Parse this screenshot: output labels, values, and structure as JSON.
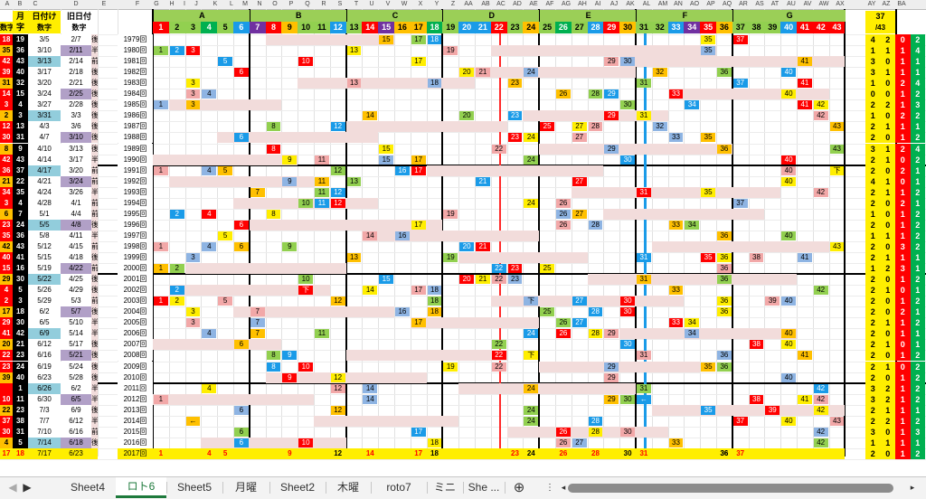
{
  "column_letters": [
    "A",
    "B",
    "C",
    "D",
    "E",
    "F",
    "G",
    "H",
    "I",
    "J",
    "K",
    "L",
    "M",
    "N",
    "O",
    "P",
    "Q",
    "R",
    "S",
    "T",
    "U",
    "V",
    "W",
    "X",
    "Y",
    "Z",
    "AA",
    "AB",
    "AC",
    "AD",
    "AE",
    "AF",
    "AG",
    "AH",
    "AI",
    "AJ",
    "AK",
    "AL",
    "AM",
    "AN",
    "AO",
    "AP",
    "AQ",
    "AR",
    "AS",
    "AT",
    "AU",
    "AV",
    "AW",
    "AX",
    "AY",
    "AZ",
    "BA"
  ],
  "header": {
    "month": "月",
    "digit": "字",
    "number": "数字",
    "date_label": "日付け",
    "old_date_label": "旧日付",
    "groups": [
      "A",
      "B",
      "C",
      "D",
      "E",
      "F",
      "G"
    ],
    "side_top": "37",
    "side_fraction": "/43"
  },
  "numbers": [
    "1",
    "2",
    "3",
    "4",
    "5",
    "6",
    "7",
    "8",
    "9",
    "10",
    "11",
    "12",
    "13",
    "14",
    "15",
    "16",
    "17",
    "18",
    "19",
    "20",
    "21",
    "22",
    "23",
    "24",
    "25",
    "26",
    "27",
    "28",
    "29",
    "30",
    "31",
    "32",
    "33",
    "34",
    "35",
    "36",
    "37",
    "38",
    "39",
    "40",
    "41",
    "42",
    "43"
  ],
  "rows": [
    [
      "18",
      "19",
      "3/5",
      "2/7",
      "後",
      "1979回"
    ],
    [
      "35",
      "36",
      "3/10",
      "2/11",
      "半",
      "1980回"
    ],
    [
      "42",
      "43",
      "3/13",
      "2/14",
      "前",
      "1981回"
    ],
    [
      "39",
      "40",
      "3/17",
      "2/18",
      "後",
      "1982回"
    ],
    [
      "31",
      "32",
      "3/20",
      "2/21",
      "後",
      "1983回"
    ],
    [
      "14",
      "15",
      "3/24",
      "2/25",
      "後",
      "1984回"
    ],
    [
      "3",
      "4",
      "3/27",
      "2/28",
      "後",
      "1985回"
    ],
    [
      "2",
      "3",
      "3/31",
      "3/3",
      "後",
      "1986回"
    ],
    [
      "12",
      "13",
      "4/3",
      "3/6",
      "後",
      "1987回"
    ],
    [
      "30",
      "31",
      "4/7",
      "3/10",
      "後",
      "1988回"
    ],
    [
      "8",
      "9",
      "4/10",
      "3/13",
      "後",
      "1989回"
    ],
    [
      "42",
      "43",
      "4/14",
      "3/17",
      "半",
      "1990回"
    ],
    [
      "36",
      "37",
      "4/17",
      "3/20",
      "前",
      "1991回"
    ],
    [
      "21",
      "22",
      "4/21",
      "3/24",
      "前",
      "1992回"
    ],
    [
      "34",
      "35",
      "4/24",
      "3/26",
      "半",
      "1993回"
    ],
    [
      "3",
      "4",
      "4/28",
      "4/1",
      "前",
      "1994回"
    ],
    [
      "6",
      "7",
      "5/1",
      "4/4",
      "前",
      "1995回"
    ],
    [
      "23",
      "24",
      "5/5",
      "4/8",
      "後",
      "1996回"
    ],
    [
      "35",
      "36",
      "5/8",
      "4/11",
      "半",
      "1997回"
    ],
    [
      "42",
      "43",
      "5/12",
      "4/15",
      "前",
      "1998回"
    ],
    [
      "40",
      "41",
      "5/15",
      "4/18",
      "後",
      "1999回"
    ],
    [
      "15",
      "16",
      "5/19",
      "4/22",
      "前",
      "2000回"
    ],
    [
      "29",
      "30",
      "5/22",
      "4/25",
      "後",
      "2001回"
    ],
    [
      "4",
      "5",
      "5/26",
      "4/29",
      "後",
      "2002回"
    ],
    [
      "2",
      "3",
      "5/29",
      "5/3",
      "前",
      "2003回"
    ],
    [
      "17",
      "18",
      "6/2",
      "5/7",
      "後",
      "2004回"
    ],
    [
      "29",
      "30",
      "6/5",
      "5/10",
      "半",
      "2005回"
    ],
    [
      "41",
      "42",
      "6/9",
      "5/14",
      "半",
      "2006回"
    ],
    [
      "20",
      "21",
      "6/12",
      "5/17",
      "後",
      "2007回"
    ],
    [
      "22",
      "23",
      "6/16",
      "5/21",
      "後",
      "2008回"
    ],
    [
      "23",
      "24",
      "6/19",
      "5/24",
      "後",
      "2009回"
    ],
    [
      "39",
      "40",
      "6/23",
      "5/28",
      "後",
      "2010回"
    ],
    [
      "",
      "1",
      "6/26",
      "6/2",
      "半",
      "2011回"
    ],
    [
      "10",
      "11",
      "6/30",
      "6/5",
      "半",
      "2012回"
    ],
    [
      "22",
      "23",
      "7/3",
      "6/9",
      "後",
      "2013回"
    ],
    [
      "37",
      "38",
      "7/7",
      "6/12",
      "半",
      "2014回"
    ],
    [
      "30",
      "31",
      "7/10",
      "6/16",
      "前",
      "2015回"
    ],
    [
      "4",
      "5",
      "7/14",
      "6/18",
      "後",
      "2016回"
    ],
    [
      "17",
      "18",
      "7/17",
      "6/23",
      "",
      "2017回"
    ]
  ],
  "side_counts": [
    [
      "4",
      "2",
      "0",
      "2"
    ],
    [
      "1",
      "1",
      "1",
      "4"
    ],
    [
      "3",
      "0",
      "1",
      "1"
    ],
    [
      "3",
      "1",
      "1",
      "1"
    ],
    [
      "1",
      "0",
      "2",
      "4"
    ],
    [
      "0",
      "0",
      "1",
      "2"
    ],
    [
      "2",
      "2",
      "1",
      "3"
    ],
    [
      "1",
      "0",
      "2",
      "2"
    ],
    [
      "2",
      "1",
      "1",
      "1"
    ],
    [
      "2",
      "0",
      "1",
      "2"
    ],
    [
      "3",
      "1",
      "2",
      "4"
    ],
    [
      "2",
      "1",
      "0",
      "2"
    ],
    [
      "2",
      "0",
      "2",
      "1"
    ],
    [
      "4",
      "1",
      "0",
      "1"
    ],
    [
      "2",
      "1",
      "1",
      "2"
    ],
    [
      "2",
      "0",
      "2",
      "1"
    ],
    [
      "1",
      "0",
      "1",
      "2"
    ],
    [
      "2",
      "0",
      "1",
      "2"
    ],
    [
      "1",
      "1",
      "1",
      "2"
    ],
    [
      "2",
      "0",
      "3",
      "2"
    ],
    [
      "2",
      "1",
      "1",
      "1"
    ],
    [
      "1",
      "2",
      "3",
      "1"
    ],
    [
      "2",
      "0",
      "1",
      "2"
    ],
    [
      "2",
      "1",
      "0",
      "1"
    ],
    [
      "2",
      "0",
      "1",
      "2"
    ],
    [
      "2",
      "0",
      "2",
      "1"
    ],
    [
      "2",
      "1",
      "1",
      "2"
    ],
    [
      "2",
      "0",
      "1",
      "1"
    ],
    [
      "2",
      "1",
      "0",
      "1"
    ],
    [
      "2",
      "0",
      "1",
      "2"
    ],
    [
      "2",
      "1",
      "0",
      "2"
    ],
    [
      "2",
      "0",
      "1",
      "2"
    ],
    [
      "3",
      "2",
      "1",
      "2"
    ],
    [
      "3",
      "2",
      "1",
      "2"
    ],
    [
      "2",
      "1",
      "1",
      "1"
    ],
    [
      "2",
      "2",
      "1",
      "2"
    ],
    [
      "3",
      "0",
      "1",
      "3"
    ],
    [
      "1",
      "1",
      "1",
      "1"
    ],
    [
      "2",
      "0",
      "1",
      "2"
    ]
  ],
  "marks": {
    "r0": [
      "15",
      "17",
      "18",
      "37",
      "35"
    ],
    "r1": [
      "1",
      "2",
      "3",
      "13",
      "19",
      "35"
    ],
    "r2": [
      "5",
      "10",
      "17",
      "29",
      "30",
      "41"
    ],
    "r3": [
      "6",
      "20",
      "21",
      "24",
      "32",
      "36",
      "40"
    ],
    "r4": [
      "3",
      "13",
      "18",
      "23",
      "31",
      "37",
      "41"
    ],
    "r5": [
      "3",
      "4",
      "26",
      "28",
      "29",
      "33",
      "40"
    ],
    "r6": [
      "1",
      "3",
      "30",
      "34",
      "41",
      "42"
    ],
    "r7": [
      "14",
      "20",
      "23",
      "29",
      "31",
      "42"
    ],
    "r8": [
      "8",
      "12",
      "25",
      "27",
      "28",
      "32",
      "43"
    ],
    "r9": [
      "6",
      "23",
      "24",
      "27",
      "33",
      "35"
    ],
    "r10": [
      "8",
      "15",
      "22",
      "29",
      "36",
      "43"
    ],
    "r11": [
      "9",
      "11",
      "15",
      "17",
      "24",
      "30",
      "40"
    ],
    "r12": [
      "1",
      "4",
      "5",
      "12",
      "16",
      "17",
      "下",
      "40"
    ],
    "r13": [
      "9",
      "11",
      "13",
      "21",
      "27",
      "40"
    ],
    "r14": [
      "7",
      "11",
      "12",
      "31",
      "35",
      "42"
    ],
    "r15": [
      "10",
      "11",
      "12",
      "24",
      "26",
      "37"
    ],
    "r16": [
      "2",
      "4",
      "8",
      "19",
      "26",
      "27"
    ],
    "r17": [
      "6",
      "17",
      "26",
      "28",
      "33",
      "34"
    ],
    "r18": [
      "5",
      "14",
      "16",
      "36",
      "40"
    ],
    "r19": [
      "1",
      "4",
      "6",
      "9",
      "20",
      "21",
      "43"
    ],
    "r20": [
      "3",
      "13",
      "19",
      "31",
      "35",
      "36",
      "38",
      "41"
    ],
    "r21": [
      "1",
      "2",
      "22",
      "23",
      "25",
      "36"
    ],
    "r22": [
      "10",
      "15",
      "20",
      "21",
      "22",
      "23",
      "31",
      "36"
    ],
    "r23": [
      "2",
      "下",
      "14",
      "17",
      "18",
      "33",
      "42"
    ],
    "r24": [
      "1",
      "2",
      "5",
      "下",
      "12",
      "18",
      "27",
      "30",
      "36",
      "39",
      "40"
    ],
    "r25": [
      "3",
      "7",
      "16",
      "18",
      "25",
      "28",
      "30",
      "36"
    ],
    "r26": [
      "3",
      "7",
      "17",
      "26",
      "27",
      "33",
      "34"
    ],
    "r27": [
      "4",
      "7",
      "11",
      "24",
      "26",
      "28",
      "29",
      "34",
      "40"
    ],
    "r28": [
      "6",
      "22",
      "30",
      "38",
      "40"
    ],
    "r29": [
      "8",
      "9",
      "22",
      "下",
      "31",
      "36",
      "41"
    ],
    "r30": [
      "8",
      "10",
      "19",
      "22",
      "29",
      "35",
      "36"
    ],
    "r31": [
      "9",
      "12",
      "29",
      "40"
    ],
    "r32": [
      "4",
      "12",
      "14",
      "24",
      "31",
      "42"
    ],
    "r33": [
      "1",
      "14",
      "29",
      "30",
      "←",
      "38",
      "41",
      "42"
    ],
    "r34": [
      "6",
      "12",
      "24",
      "35",
      "39",
      "42"
    ],
    "r35": [
      "←",
      "24",
      "28",
      "37",
      "40",
      "43"
    ],
    "r36": [
      "6",
      "17",
      "26",
      "28",
      "30",
      "42"
    ],
    "r37": [
      "6",
      "10",
      "18",
      "26",
      "27",
      "33",
      "42"
    ],
    "r38": [
      "1",
      "4",
      "5",
      "9",
      "12",
      "14",
      "17",
      "18",
      "23",
      "24",
      "26",
      "28",
      "30",
      "31",
      "36",
      "37",
      "36"
    ]
  },
  "tabs": [
    "Sheet4",
    "ロト6",
    "Sheet5",
    "月曜",
    "Sheet2",
    "木曜",
    "roto7",
    "ミニ",
    "She ..."
  ],
  "active_tab": "ロト6",
  "icons": {
    "prev": "triangle-left-icon",
    "next": "triangle-right-icon",
    "add": "plus-circle-icon",
    "more": "ellipsis-icon"
  },
  "colors": {
    "number_header_green": "#9bcf57",
    "number_header_red": "#ff0000",
    "yellow": "#ffee00",
    "orange": "#ffc000",
    "pink": "#f2dcdb",
    "blue": "#1a9be8",
    "active_tab_green": "#1e7a3c"
  }
}
